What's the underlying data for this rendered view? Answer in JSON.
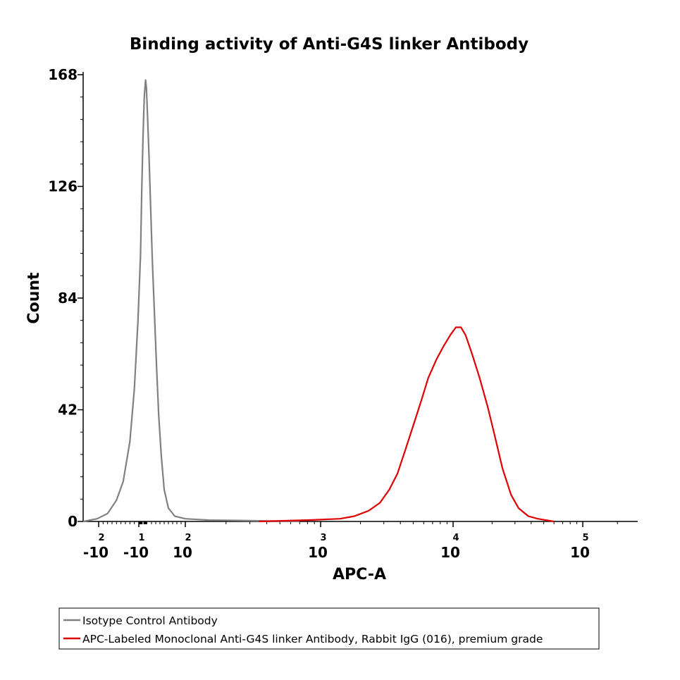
{
  "chart_data": {
    "type": "line",
    "title": "Binding activity of Anti-G4S linker Antibody",
    "xlabel": "APC-A",
    "ylabel": "Count",
    "x_scale": "biexponential",
    "ylim": [
      0,
      168
    ],
    "y_ticks": [
      "0",
      "42",
      "84",
      "126",
      "168"
    ],
    "x_ticks": [
      {
        "value": -100,
        "base": "-10",
        "exp": "2"
      },
      {
        "value": -10,
        "base": "-10",
        "exp": "1"
      },
      {
        "value": 100,
        "base": "10",
        "exp": "2"
      },
      {
        "value": 1000,
        "base": "10",
        "exp": "3"
      },
      {
        "value": 10000,
        "base": "10",
        "exp": "4"
      },
      {
        "value": 100000,
        "base": "10",
        "exp": "5"
      }
    ],
    "grid": false,
    "legend_position": "bottom",
    "series": [
      {
        "name": "Isotype Control Antibody",
        "color": "#808080",
        "points": [
          [
            -300,
            0
          ],
          [
            -120,
            1
          ],
          [
            -80,
            3
          ],
          [
            -60,
            8
          ],
          [
            -45,
            15
          ],
          [
            -30,
            30
          ],
          [
            -20,
            50
          ],
          [
            -12,
            75
          ],
          [
            -6,
            100
          ],
          [
            -3,
            125
          ],
          [
            0,
            145
          ],
          [
            3,
            160
          ],
          [
            6,
            166
          ],
          [
            8,
            163
          ],
          [
            10,
            155
          ],
          [
            14,
            138
          ],
          [
            18,
            118
          ],
          [
            22,
            98
          ],
          [
            27,
            78
          ],
          [
            32,
            58
          ],
          [
            37,
            40
          ],
          [
            43,
            25
          ],
          [
            50,
            12
          ],
          [
            60,
            5
          ],
          [
            75,
            2
          ],
          [
            100,
            1
          ],
          [
            150,
            0.5
          ],
          [
            300,
            0.3
          ],
          [
            700,
            0
          ]
        ]
      },
      {
        "name": "APC-Labeled Monoclonal Anti-G4S linker Antibody, Rabbit IgG (016), premium grade",
        "color": "#e00000",
        "points": [
          [
            350,
            0
          ],
          [
            800,
            0.5
          ],
          [
            1400,
            1
          ],
          [
            1800,
            2
          ],
          [
            2300,
            4
          ],
          [
            2800,
            7
          ],
          [
            3300,
            12
          ],
          [
            3800,
            18
          ],
          [
            4300,
            26
          ],
          [
            5000,
            36
          ],
          [
            5800,
            46
          ],
          [
            6500,
            54
          ],
          [
            7500,
            61
          ],
          [
            8500,
            66
          ],
          [
            9500,
            70
          ],
          [
            10500,
            73
          ],
          [
            11500,
            73
          ],
          [
            12500,
            70
          ],
          [
            14000,
            63
          ],
          [
            16000,
            54
          ],
          [
            18500,
            43
          ],
          [
            21000,
            32
          ],
          [
            24000,
            20
          ],
          [
            28000,
            10
          ],
          [
            32000,
            5
          ],
          [
            38000,
            2
          ],
          [
            45000,
            1
          ],
          [
            60000,
            0
          ]
        ]
      }
    ]
  }
}
